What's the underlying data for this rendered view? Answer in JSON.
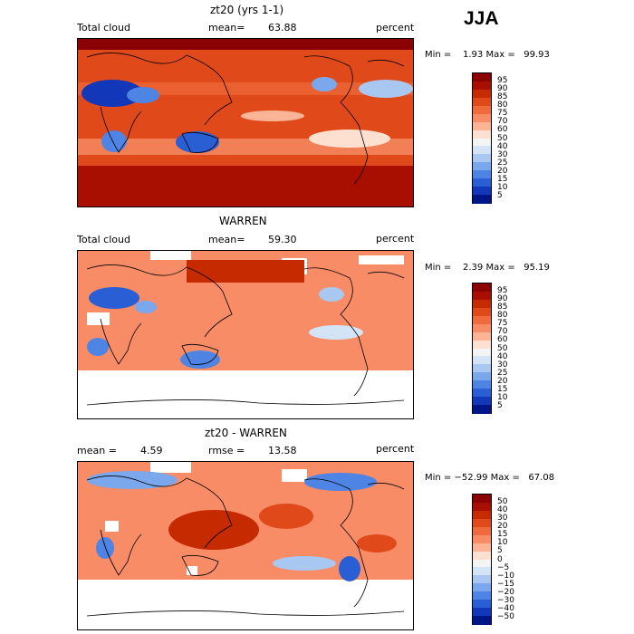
{
  "season": "JJA",
  "panels": [
    {
      "title": "zt20 (yrs 1-1)",
      "left_label": "Total cloud",
      "center_label": "mean=",
      "center_value": "63.88",
      "right_label": "percent",
      "minmax": "Min =    1.93 Max =   99.93",
      "colorbar_labels": [
        "95",
        "90",
        "85",
        "80",
        "75",
        "70",
        "60",
        "50",
        "40",
        "30",
        "25",
        "20",
        "15",
        "10",
        "5"
      ],
      "map_kind": "model"
    },
    {
      "title": "WARREN",
      "left_label": "Total cloud",
      "center_label": "mean=",
      "center_value": "59.30",
      "right_label": "percent",
      "minmax": "Min =    2.39 Max =   95.19",
      "colorbar_labels": [
        "95",
        "90",
        "85",
        "80",
        "75",
        "70",
        "60",
        "50",
        "40",
        "30",
        "25",
        "20",
        "15",
        "10",
        "5"
      ],
      "map_kind": "obs"
    },
    {
      "title": "zt20 - WARREN",
      "left_label": "mean =",
      "left_value": "4.59",
      "center_label": "rmse =",
      "center_value": "13.58",
      "right_label": "percent",
      "minmax": "Min = −52.99 Max =   67.08",
      "colorbar_labels": [
        "50",
        "40",
        "30",
        "20",
        "15",
        "10",
        "5",
        "0",
        "−5",
        "−10",
        "−15",
        "−20",
        "−30",
        "−40",
        "−50"
      ],
      "map_kind": "diff"
    }
  ],
  "colors": {
    "scale": [
      "#8b0000",
      "#a80f00",
      "#c62a00",
      "#e04a1a",
      "#ef6a3c",
      "#f88c66",
      "#fcb497",
      "#fde0d0",
      "#f4f4f4",
      "#d4e4f7",
      "#a8c8f2",
      "#7ba8ec",
      "#4e84e3",
      "#2a5ed4",
      "#1237b8",
      "#001585"
    ]
  },
  "chart_data": [
    {
      "type": "heatmap",
      "title": "zt20 (yrs 1-1)",
      "variable": "Total cloud",
      "units": "percent",
      "mean": 63.88,
      "min": 1.93,
      "max": 99.93,
      "contour_levels": [
        5,
        10,
        15,
        20,
        25,
        30,
        40,
        50,
        60,
        70,
        75,
        80,
        85,
        90,
        95
      ]
    },
    {
      "type": "heatmap",
      "title": "WARREN",
      "variable": "Total cloud",
      "units": "percent",
      "mean": 59.3,
      "min": 2.39,
      "max": 95.19,
      "contour_levels": [
        5,
        10,
        15,
        20,
        25,
        30,
        40,
        50,
        60,
        70,
        75,
        80,
        85,
        90,
        95
      ]
    },
    {
      "type": "heatmap",
      "title": "zt20 - WARREN",
      "units": "percent",
      "mean": 4.59,
      "rmse": 13.58,
      "min": -52.99,
      "max": 67.08,
      "contour_levels": [
        -50,
        -40,
        -30,
        -20,
        -15,
        -10,
        -5,
        0,
        5,
        10,
        15,
        20,
        30,
        40,
        50
      ]
    }
  ]
}
